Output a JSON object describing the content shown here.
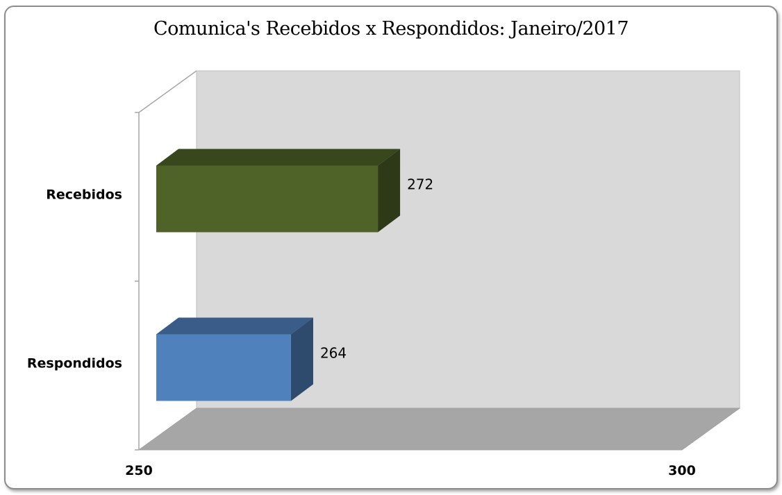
{
  "chart_data": {
    "type": "bar",
    "orientation": "horizontal",
    "three_d": true,
    "title": "Comunica's Recebidos x Respondidos: Janeiro/2017",
    "categories": [
      "Recebidos",
      "Respondidos"
    ],
    "values": [
      272,
      264
    ],
    "data_labels": [
      "272",
      "264"
    ],
    "xlim": [
      250,
      300
    ],
    "x_ticks": [
      "250",
      "300"
    ],
    "colors": {
      "Recebidos": "#4f6228",
      "Respondidos": "#4f81bd",
      "back_wall": "#d9d9d9",
      "floor": "#a6a6a6"
    },
    "grid": false,
    "legend": "none"
  }
}
